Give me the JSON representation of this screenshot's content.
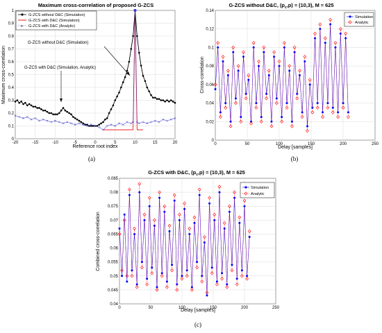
{
  "figure": {
    "captions": [
      "(a)",
      "(b)",
      "(c)"
    ]
  },
  "chart_data": [
    {
      "id": "a",
      "type": "line",
      "title": "Maximum cross-correlation of proposed G-ZCS",
      "xlabel": "Reference root index",
      "ylabel": "Maximum cross-correlation",
      "xlim": [
        -20,
        20
      ],
      "ylim": [
        0,
        1
      ],
      "xticks": [
        "-20",
        "-15",
        "-10",
        "-5",
        "0",
        "5",
        "10",
        "15",
        "20"
      ],
      "yticks": [
        "0",
        "0.1",
        "0.2",
        "0.3",
        "0.4",
        "0.5",
        "0.6",
        "0.7",
        "0.8",
        "0.9",
        "1"
      ],
      "grid": true,
      "legend_position": "top-left",
      "annotations": [
        {
          "text": "G-ZCS without D&C (Simulation)",
          "x": 10,
          "y": 0.48
        },
        {
          "text": "G-ZCS with D&C (Simulation, Analytic)",
          "x": -8,
          "y": 0.22
        }
      ],
      "series": [
        {
          "name": "G-ZCS without D&C  (Simulation)",
          "color": "#000000",
          "x": [
            -20,
            -19.5,
            -19,
            -18.5,
            -18,
            -17.5,
            -17,
            -16.5,
            -16,
            -15.5,
            -15,
            -14.5,
            -14,
            -13.5,
            -13,
            -12.5,
            -12,
            -11.5,
            -11,
            -10.5,
            -10,
            -9.5,
            -9,
            -8.5,
            -8,
            -7.5,
            -7,
            -6.5,
            -6,
            -5.5,
            -5,
            -4.5,
            -4,
            -3.5,
            -3,
            -2.5,
            -2,
            -1.5,
            -1,
            -0.5,
            0,
            0.5,
            1,
            1.5,
            2,
            2.5,
            3,
            3.5,
            4,
            4.5,
            5,
            5.5,
            6,
            6.5,
            7,
            7.5,
            8,
            8.5,
            9,
            9.5,
            10,
            10.5,
            11,
            11.5,
            12,
            12.5,
            13,
            13.5,
            14,
            14.5,
            15,
            15.5,
            16,
            16.5,
            17,
            17.5,
            18,
            18.5,
            19,
            19.5,
            20
          ],
          "values": [
            0.29,
            0.3,
            0.28,
            0.29,
            0.27,
            0.28,
            0.26,
            0.27,
            0.26,
            0.25,
            0.25,
            0.24,
            0.24,
            0.23,
            0.22,
            0.22,
            0.21,
            0.2,
            0.2,
            0.19,
            0.19,
            0.19,
            0.2,
            0.22,
            0.24,
            0.22,
            0.21,
            0.2,
            0.19,
            0.17,
            0.16,
            0.15,
            0.14,
            0.13,
            0.12,
            0.11,
            0.11,
            0.1,
            0.1,
            0.1,
            0.1,
            0.1,
            0.11,
            0.12,
            0.13,
            0.15,
            0.16,
            0.2,
            0.23,
            0.26,
            0.3,
            0.33,
            0.36,
            0.4,
            0.44,
            0.48,
            0.53,
            0.6,
            0.7,
            0.8,
            1.0,
            0.8,
            0.67,
            0.57,
            0.49,
            0.45,
            0.4,
            0.37,
            0.34,
            0.32,
            0.32,
            0.31,
            0.31,
            0.3,
            0.3,
            0.29,
            0.3,
            0.29,
            0.3,
            0.29,
            0.28
          ]
        },
        {
          "name": "G-ZCS with D&C  (Simulation)",
          "color": "#e60000",
          "x": [
            2,
            9.5,
            10,
            10.5,
            12
          ],
          "values": [
            0.07,
            0.07,
            1.0,
            0.07,
            0.07
          ]
        },
        {
          "name": "G-ZCS with D&C  (Analytic)",
          "color": "#3333cc",
          "x": [
            -20,
            -19,
            -18,
            -17,
            -16,
            -15,
            -14,
            -13,
            -12,
            -11,
            -10,
            -9,
            -8,
            -7,
            -6,
            -5,
            -4,
            -3,
            -2,
            -1,
            0,
            1,
            2,
            3,
            4,
            5,
            6,
            7,
            8,
            9,
            9.5,
            10,
            10.5,
            11,
            12,
            13,
            14,
            15,
            16,
            17,
            18,
            19,
            20
          ],
          "values": [
            0.18,
            0.17,
            0.16,
            0.17,
            0.15,
            0.16,
            0.14,
            0.15,
            0.14,
            0.13,
            0.14,
            0.13,
            0.12,
            0.13,
            0.12,
            0.11,
            0.12,
            0.11,
            0.1,
            0.11,
            0.1,
            0.09,
            0.07,
            0.1,
            0.11,
            0.1,
            0.12,
            0.11,
            0.13,
            0.12,
            0.13,
            1.0,
            0.13,
            0.12,
            0.13,
            0.12,
            0.13,
            0.14,
            0.13,
            0.15,
            0.14,
            0.15,
            0.16
          ]
        }
      ]
    },
    {
      "id": "b",
      "type": "line",
      "title": "G-ZCS without D&C, (p",
      "title_sub": "c",
      "title_rest": ",p) = (10,3), M = 625",
      "xlabel": "Delay [samples]",
      "ylabel": "Cross-correlation",
      "xlim": [
        0,
        250
      ],
      "ylim": [
        0,
        0.14
      ],
      "xticks": [
        "0",
        "50",
        "100",
        "150",
        "200",
        "250"
      ],
      "yticks": [
        "0",
        "0.02",
        "0.04",
        "0.06",
        "0.08",
        "0.1",
        "0.12",
        "0.14"
      ],
      "grid": true,
      "legend_position": "top-right",
      "series": [
        {
          "name": "Simulation",
          "color": "#0000ff",
          "marker": "dot"
        },
        {
          "name": "Analytic",
          "color": "#ff0000",
          "marker": "diamond"
        }
      ],
      "x": [
        0,
        4,
        8,
        12,
        16,
        20,
        24,
        28,
        32,
        36,
        40,
        44,
        48,
        52,
        56,
        60,
        64,
        68,
        72,
        76,
        80,
        84,
        88,
        92,
        96,
        100,
        104,
        108,
        112,
        116,
        120,
        124,
        128,
        132,
        136,
        140,
        144,
        148,
        152,
        156,
        160,
        164,
        168,
        172,
        176,
        180,
        184,
        188,
        192,
        196,
        200,
        204,
        208
      ],
      "sim": [
        0.055,
        0.1,
        0.03,
        0.085,
        0.04,
        0.07,
        0.02,
        0.095,
        0.045,
        0.075,
        0.025,
        0.09,
        0.05,
        0.065,
        0.02,
        0.1,
        0.04,
        0.08,
        0.025,
        0.095,
        0.05,
        0.07,
        0.02,
        0.09,
        0.045,
        0.08,
        0.025,
        0.1,
        0.04,
        0.075,
        0.02,
        0.095,
        0.05,
        0.07,
        0.03,
        0.085,
        0.015,
        0.06,
        0.035,
        0.11,
        0.04,
        0.12,
        0.03,
        0.105,
        0.04,
        0.125,
        0.035,
        0.1,
        0.03,
        0.115,
        0.04,
        0.11,
        0.03
      ],
      "ana": [
        0.06,
        0.105,
        0.025,
        0.09,
        0.035,
        0.075,
        0.015,
        0.1,
        0.04,
        0.08,
        0.02,
        0.095,
        0.045,
        0.07,
        0.018,
        0.105,
        0.035,
        0.085,
        0.02,
        0.1,
        0.045,
        0.075,
        0.015,
        0.095,
        0.04,
        0.085,
        0.02,
        0.105,
        0.035,
        0.08,
        0.015,
        0.1,
        0.045,
        0.075,
        0.025,
        0.09,
        0.01,
        0.065,
        0.03,
        0.115,
        0.035,
        0.125,
        0.025,
        0.11,
        0.035,
        0.13,
        0.03,
        0.105,
        0.025,
        0.12,
        0.035,
        0.115,
        0.025
      ]
    },
    {
      "id": "c",
      "type": "line",
      "title": "G-ZCS with D&C, (p",
      "title_sub": "c",
      "title_rest": ",p) = (10,3), M = 625",
      "xlabel": "Delay [samples]",
      "ylabel": "Combined cross-correlation",
      "xlim": [
        0,
        250
      ],
      "ylim": [
        0.04,
        0.085
      ],
      "xticks": [
        "0",
        "50",
        "100",
        "150",
        "200",
        "250"
      ],
      "yticks": [
        "0.04",
        "0.045",
        "0.05",
        "0.055",
        "0.06",
        "0.065",
        "0.07",
        "0.075",
        "0.08",
        "0.085"
      ],
      "grid": true,
      "legend_position": "top-right",
      "series": [
        {
          "name": "Simulation",
          "color": "#0000ff",
          "marker": "dot"
        },
        {
          "name": "Analytic",
          "color": "#ff0000",
          "marker": "diamond"
        }
      ],
      "x": [
        0,
        4,
        8,
        12,
        16,
        20,
        24,
        28,
        32,
        36,
        40,
        44,
        48,
        52,
        56,
        60,
        64,
        68,
        72,
        76,
        80,
        84,
        88,
        92,
        96,
        100,
        104,
        108,
        112,
        116,
        120,
        124,
        128,
        132,
        136,
        140,
        144,
        148,
        152,
        156,
        160,
        164,
        168,
        172,
        176,
        180,
        184,
        188,
        192,
        196,
        200,
        204,
        208
      ],
      "sim": [
        0.067,
        0.05,
        0.072,
        0.048,
        0.079,
        0.052,
        0.065,
        0.047,
        0.08,
        0.055,
        0.07,
        0.049,
        0.075,
        0.053,
        0.068,
        0.046,
        0.078,
        0.051,
        0.073,
        0.048,
        0.066,
        0.054,
        0.077,
        0.047,
        0.07,
        0.05,
        0.074,
        0.052,
        0.065,
        0.046,
        0.069,
        0.055,
        0.079,
        0.05,
        0.062,
        0.043,
        0.076,
        0.053,
        0.07,
        0.048,
        0.08,
        0.051,
        0.067,
        0.047,
        0.073,
        0.054,
        0.078,
        0.049,
        0.069,
        0.052,
        0.075,
        0.05,
        0.064
      ],
      "ana": [
        0.065,
        0.052,
        0.07,
        0.05,
        0.081,
        0.05,
        0.067,
        0.046,
        0.083,
        0.053,
        0.072,
        0.047,
        0.078,
        0.051,
        0.07,
        0.045,
        0.08,
        0.05,
        0.075,
        0.046,
        0.068,
        0.052,
        0.079,
        0.045,
        0.072,
        0.049,
        0.076,
        0.05,
        0.067,
        0.045,
        0.071,
        0.053,
        0.081,
        0.048,
        0.064,
        0.044,
        0.078,
        0.051,
        0.072,
        0.047,
        0.082,
        0.049,
        0.069,
        0.046,
        0.075,
        0.052,
        0.08,
        0.047,
        0.071,
        0.05,
        0.077,
        0.049,
        0.066
      ]
    }
  ]
}
